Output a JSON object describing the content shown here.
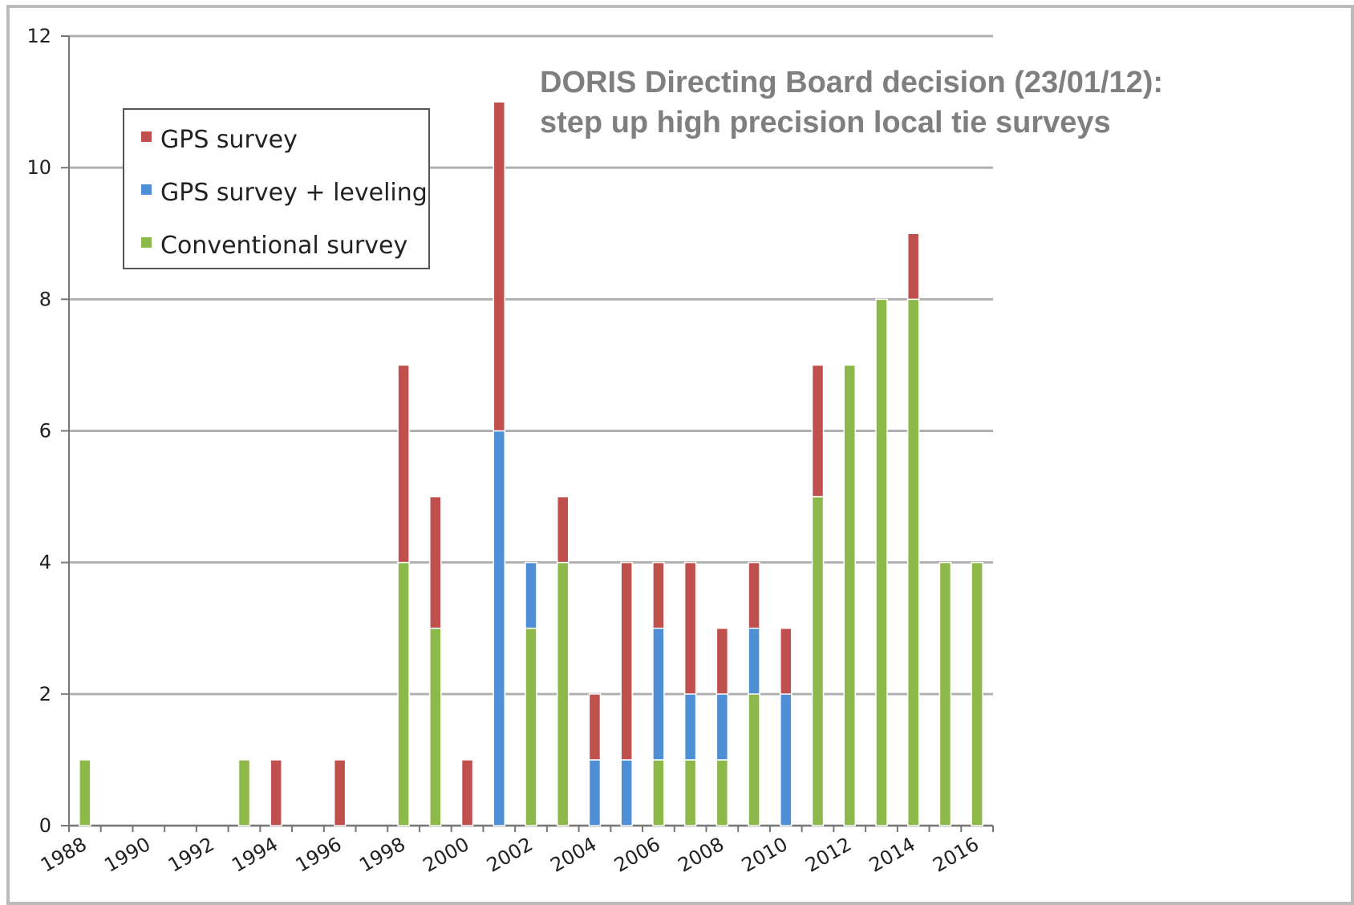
{
  "chart_data": {
    "type": "stacked_bar",
    "annotation": [
      "DORIS Directing Board decision (23/01/12):",
      "step up high precision local tie surveys"
    ],
    "categories": [
      "1988",
      null,
      "1990",
      null,
      "1992",
      null,
      "1994",
      null,
      "1996",
      null,
      "1998",
      null,
      "2000",
      null,
      "2002",
      null,
      "2004",
      null,
      "2006",
      null,
      "2008",
      null,
      "2010",
      null,
      "2012",
      null,
      "2014",
      null,
      "2016"
    ],
    "series": [
      {
        "name": "GPS survey",
        "color": "#c0504d",
        "values": [
          0,
          0,
          0,
          0,
          0,
          0,
          1,
          0,
          1,
          0,
          3,
          2,
          1,
          5,
          0,
          1,
          1,
          3,
          1,
          2,
          1,
          1,
          1,
          2,
          0,
          0,
          1,
          0,
          0
        ]
      },
      {
        "name": "GPS survey + leveling",
        "color": "#4f8fd6",
        "values": [
          0,
          0,
          0,
          0,
          0,
          0,
          0,
          0,
          0,
          0,
          0,
          0,
          0,
          6,
          1,
          0,
          1,
          1,
          2,
          1,
          1,
          1,
          2,
          0,
          0,
          0,
          0,
          0,
          0
        ]
      },
      {
        "name": "Conventional survey",
        "color": "#8db84a",
        "values": [
          1,
          0,
          0,
          0,
          0,
          1,
          0,
          0,
          0,
          0,
          4,
          3,
          0,
          0,
          3,
          4,
          0,
          0,
          1,
          1,
          1,
          2,
          0,
          5,
          7,
          8,
          8,
          4,
          4
        ]
      }
    ],
    "stack_order": [
      2,
      1,
      0
    ],
    "ylim": [
      0,
      12
    ],
    "yticks": [
      0,
      2,
      4,
      6,
      8,
      10,
      12
    ],
    "grid": true,
    "legend": "upper left"
  }
}
